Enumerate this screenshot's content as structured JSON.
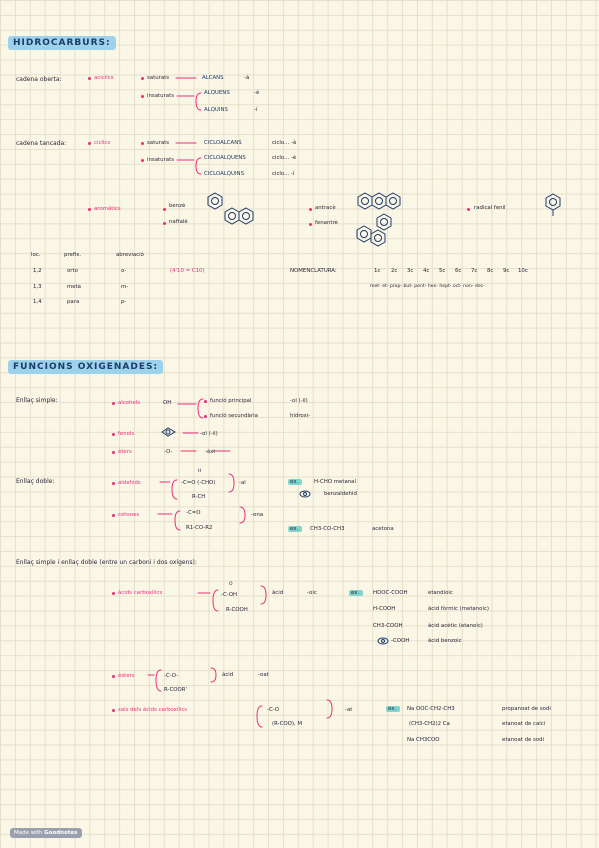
{
  "sections": {
    "hidrocarburs": "HIDROCARBURS:",
    "funcions": "FUNCIONS OXIGENADES:"
  },
  "cadena_oberta": {
    "label": "cadena oberta:",
    "type": "aciclics",
    "sat": "saturats",
    "insat": "insaturats",
    "alcans": "ALCANS",
    "alcans_suf": "-à",
    "alquens": "ALQUENS",
    "alquens_suf": "-è",
    "alquins": "ALQUINS",
    "alquins_suf": "-í"
  },
  "cadena_tancada": {
    "label": "cadena tancada:",
    "type": "ciclics",
    "sat": "saturats",
    "insat": "insaturats",
    "cicloalcans": "CICLOALCANS",
    "cicloalcans_suf": "ciclo... -à",
    "cicloalquens": "CICLOALQUENS",
    "cicloalquens_suf": "ciclo... -è",
    "cicloalquins": "CICLOALQUINS",
    "cicloalquins_suf": "ciclo... -í"
  },
  "aromatics": {
    "label": "aromàtics",
    "benze": "benzè",
    "naftale": "naftalè",
    "antrace": "antracè",
    "fenantre": "fenantrè",
    "radical_fenil": "radical fenil"
  },
  "subst_table": {
    "headers": [
      "loc.",
      "prefix.",
      "abreviació"
    ],
    "rows": [
      [
        "1,2",
        "orto",
        "o-"
      ],
      [
        "1,3",
        "meta",
        "m-"
      ],
      [
        "1,4",
        "para",
        "p-"
      ]
    ],
    "note": "(4'10 = C10)"
  },
  "nomenclatura": {
    "label": "NOMENCLATURA:",
    "nums": [
      "1c",
      "2c",
      "3c",
      "4c",
      "5c",
      "6c",
      "7c",
      "8c",
      "9c",
      "10c"
    ],
    "prefixes": "met- et- prop- but- pent- hex- hept- oct- non- dec-"
  },
  "enllac_simple": {
    "label": "Enllaç simple:",
    "alcohols": "alcohols",
    "oh": "OH",
    "princ": "funció principal",
    "princ_suf": "-ol (-il)",
    "sec": "funció secundària",
    "sec_suf": "hidroxi-",
    "fenols": "fenols",
    "fenols_suf": "-ol (-il)",
    "eters": "èters",
    "eters_f": "-O-",
    "eters_suf": "-èxi"
  },
  "enllac_doble": {
    "label": "Enllaç doble:",
    "aldehids": "aldehids",
    "ald_f1": "H",
    "ald_f2": "-C=O (-CHO)",
    "ald_f3": "R-CH",
    "ald_suf": "-al",
    "ex": "ex.",
    "ald_ex1": "H-CHO metanal",
    "ald_ex2": "benzaldehid",
    "cetones": "cetones",
    "cet_f1": "-C=O",
    "cet_f2": "R1-CO-R2",
    "cet_suf": "-ona",
    "cet_ex": "CH3-CO-CH3",
    "cet_ex_name": "acetona"
  },
  "enllac_combo": {
    "label": "Enllaç simple i enllaç doble (entre un carboni i dos oxígens):",
    "acids": "àcids carboxílics",
    "acid_f1": "O",
    "acid_f2": "-C-OH",
    "acid_f3": "R-COOH",
    "acid_name": "àcid",
    "acid_suf": "-oic",
    "ex": "ex.",
    "acid_ex": [
      [
        "HOOC-COOH",
        "etandioic"
      ],
      [
        "H-COOH",
        "àcid fòrmic (metanoic)"
      ],
      [
        "CH3-COOH",
        "àcid acètic (etanoic)"
      ],
      [
        "-COOH",
        "àcid benzoic"
      ]
    ],
    "esters": "èsters",
    "ester_f1": "-C-O-",
    "ester_f2": "R-COOR'",
    "ester_name": "àcid",
    "ester_suf": "-oat",
    "sals": "sals dels àcids carboxílics",
    "sal_f1": "-C-O",
    "sal_f2": "(R-COO), M",
    "sal_suf": "-at",
    "sal_ex": [
      [
        "Na OOC-CH2-CH3",
        "propanoat de sodi"
      ],
      [
        "(CH3-CH2)2 Ca",
        "etanoat de calci"
      ],
      [
        "Na CH3COO",
        "etanoat de sodi"
      ]
    ]
  },
  "badge": {
    "prefix": "Made with",
    "brand": "Goodnotes"
  }
}
